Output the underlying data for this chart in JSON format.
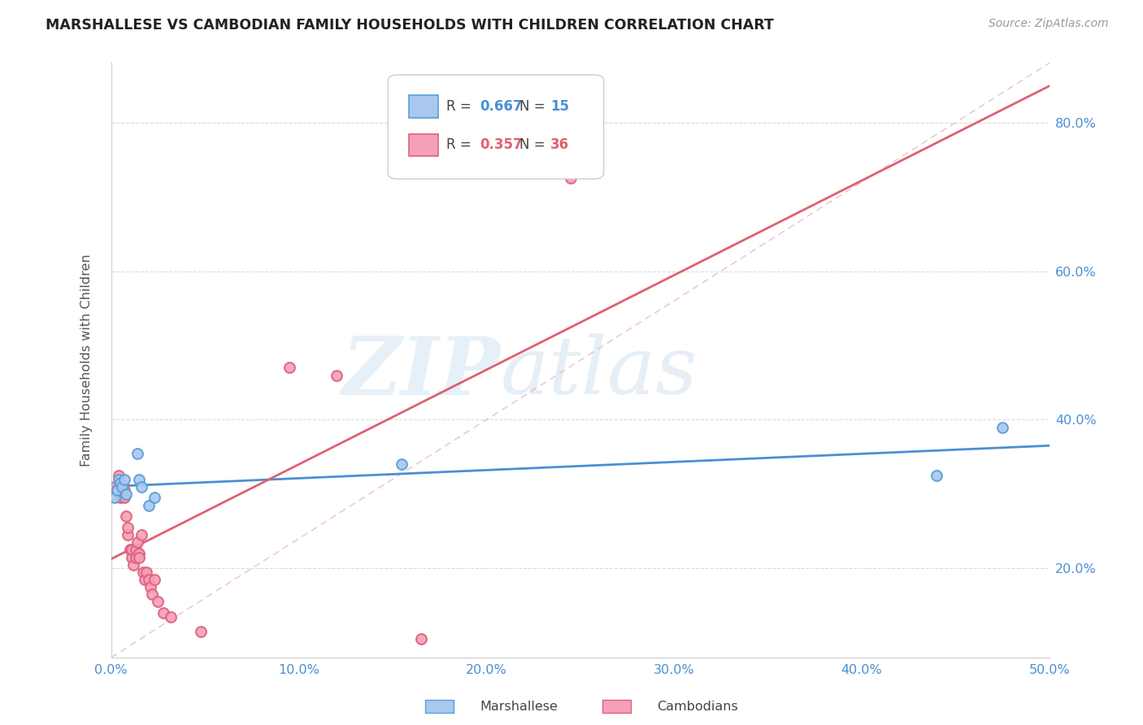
{
  "title": "MARSHALLESE VS CAMBODIAN FAMILY HOUSEHOLDS WITH CHILDREN CORRELATION CHART",
  "source": "Source: ZipAtlas.com",
  "ylabel": "Family Households with Children",
  "xlim": [
    0.0,
    0.5
  ],
  "ylim": [
    0.08,
    0.88
  ],
  "xticks": [
    0.0,
    0.1,
    0.2,
    0.3,
    0.4,
    0.5
  ],
  "yticks": [
    0.2,
    0.4,
    0.6,
    0.8
  ],
  "ytick_labels": [
    "20.0%",
    "40.0%",
    "60.0%",
    "80.0%"
  ],
  "xtick_labels": [
    "0.0%",
    "10.0%",
    "20.0%",
    "30.0%",
    "40.0%",
    "50.0%"
  ],
  "marshallese_color": "#a8c8f0",
  "cambodian_color": "#f4a0b8",
  "marshallese_edge_color": "#5a9fd4",
  "cambodian_edge_color": "#e0607a",
  "marshallese_line_color": "#4a8fd4",
  "cambodian_line_color": "#e06070",
  "diagonal_color": "#e8b8c8",
  "background_color": "#ffffff",
  "grid_color": "#d8d8d8",
  "legend_R_marshallese": "R = 0.667",
  "legend_N_marshallese": "N = 15",
  "legend_R_cambodian": "R = 0.357",
  "legend_N_cambodian": "N = 36",
  "marshallese_x": [
    0.002,
    0.003,
    0.004,
    0.005,
    0.006,
    0.007,
    0.008,
    0.014,
    0.015,
    0.016,
    0.02,
    0.023,
    0.155,
    0.44,
    0.475
  ],
  "marshallese_y": [
    0.295,
    0.305,
    0.32,
    0.315,
    0.31,
    0.32,
    0.3,
    0.355,
    0.32,
    0.31,
    0.285,
    0.295,
    0.34,
    0.325,
    0.39
  ],
  "cambodian_x": [
    0.002,
    0.003,
    0.004,
    0.005,
    0.005,
    0.006,
    0.007,
    0.007,
    0.008,
    0.009,
    0.009,
    0.01,
    0.011,
    0.011,
    0.012,
    0.013,
    0.013,
    0.014,
    0.015,
    0.015,
    0.016,
    0.017,
    0.018,
    0.019,
    0.02,
    0.021,
    0.022,
    0.023,
    0.025,
    0.028,
    0.032,
    0.048,
    0.095,
    0.12,
    0.165,
    0.245
  ],
  "cambodian_y": [
    0.31,
    0.305,
    0.325,
    0.295,
    0.315,
    0.31,
    0.295,
    0.305,
    0.27,
    0.245,
    0.255,
    0.225,
    0.215,
    0.225,
    0.205,
    0.215,
    0.225,
    0.235,
    0.22,
    0.215,
    0.245,
    0.195,
    0.185,
    0.195,
    0.185,
    0.175,
    0.165,
    0.185,
    0.155,
    0.14,
    0.135,
    0.115,
    0.47,
    0.46,
    0.105,
    0.725
  ],
  "watermark_zip": "ZIP",
  "watermark_atlas": "atlas",
  "marker_size": 85,
  "marker_linewidth": 1.5,
  "line_linewidth": 2.0,
  "title_color": "#222222",
  "axis_tick_color": "#4a8fd4",
  "ylabel_color": "#555555"
}
